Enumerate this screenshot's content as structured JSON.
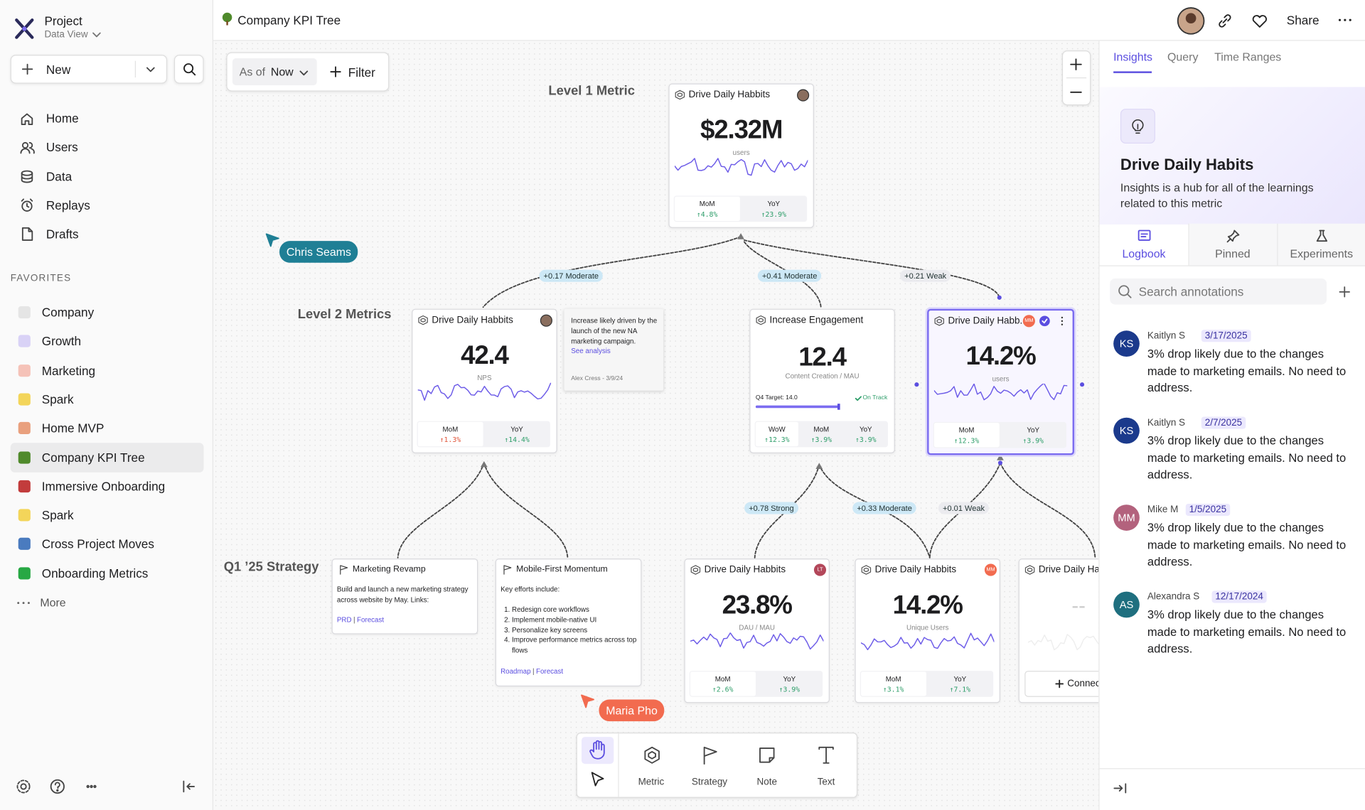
{
  "sidebar": {
    "project": "Project",
    "view": "Data View",
    "new": "New",
    "nav": [
      "Home",
      "Users",
      "Data",
      "Replays",
      "Drafts"
    ],
    "favorites_heading": "FAVORITES",
    "favorites": [
      "Company",
      "Growth",
      "Marketing",
      "Spark",
      "Home MVP",
      "Company KPI Tree",
      "Immersive Onboarding",
      "Spark",
      "Cross Project Moves",
      "Onboarding Metrics"
    ],
    "more": "More"
  },
  "header": {
    "title": "Company KPI Tree",
    "share": "Share"
  },
  "canvas": {
    "as_of": "As of",
    "now": "Now",
    "filter": "Filter",
    "levels": [
      "Level 1 Metric",
      "Level 2 Metrics",
      "Q1 ’25 Strategy"
    ],
    "cursors": [
      "Chris Seams",
      "Maria Pho"
    ],
    "edges": [
      "+0.17 Moderate",
      "+0.41 Moderate",
      "+0.21 Weak",
      "+0.78 Strong",
      "+0.33 Moderate",
      "+0.01 Weak"
    ],
    "metrics": [
      {
        "title": "Drive Daily Habbits",
        "value": "$2.32M",
        "unit": "users",
        "stats": [
          {
            "label": "MoM",
            "value": "↑4.8%"
          },
          {
            "label": "YoY",
            "value": "↑23.9%"
          }
        ]
      },
      {
        "title": "Drive Daily Habbits",
        "value": "42.4",
        "unit": "NPS",
        "stats": [
          {
            "label": "MoM",
            "value": "↑1.3%",
            "color": "#e0553a"
          },
          {
            "label": "YoY",
            "value": "↑14.4%"
          }
        ]
      },
      {
        "title": "Increase Engagement",
        "value": "12.4",
        "unit": "Content Creation / MAU",
        "target": "Q4 Target: 14.0",
        "status": "On Track",
        "stats": [
          {
            "label": "WoW",
            "value": "↑12.3%"
          },
          {
            "label": "MoM",
            "value": "↑3.9%"
          },
          {
            "label": "YoY",
            "value": "↑3.9%"
          }
        ]
      },
      {
        "title": "Drive Daily Habb..",
        "badge": "MM",
        "value": "14.2%",
        "unit": "users",
        "stats": [
          {
            "label": "MoM",
            "value": "↑12.3%"
          },
          {
            "label": "YoY",
            "value": "↑3.9%"
          }
        ]
      },
      {
        "title": "Drive Daily Habbits",
        "badge": "LT",
        "value": "23.8%",
        "unit": "DAU / MAU",
        "stats": [
          {
            "label": "MoM",
            "value": "↑2.6%"
          },
          {
            "label": "YoY",
            "value": "↑3.9%"
          }
        ]
      },
      {
        "title": "Drive Daily Habbits",
        "badge": "MM",
        "value": "14.2%",
        "unit": "Unique Users",
        "stats": [
          {
            "label": "MoM",
            "value": "↑3.1%"
          },
          {
            "label": "YoY",
            "value": "↑7.1%"
          }
        ]
      },
      {
        "title": "Drive Daily Habbits",
        "value": "--",
        "action": "Connect"
      }
    ],
    "note": {
      "text": "Increase likely driven by the launch of the new NA marketing campaign.",
      "link": "See analysis",
      "footer": "Alex Cress - 3/9/24"
    },
    "link_separator": "|",
    "strategies": [
      {
        "title": "Marketing Revamp",
        "body": "Build and launch a new marketing strategy across website by May. Links:",
        "links": [
          "PRD",
          "Forecast"
        ]
      },
      {
        "title": "Mobile-First Momentum",
        "body": "Key efforts include:",
        "items": [
          "Redesign core workflows",
          "Implement mobile-native UI",
          "Personalize key screens",
          "Improve performance metrics across top flows"
        ],
        "links": [
          "Roadmap",
          "Forecast"
        ]
      }
    ]
  },
  "toolbar": [
    "Metric",
    "Strategy",
    "Note",
    "Text"
  ],
  "panel": {
    "tabs": [
      "Insights",
      "Query",
      "Time Ranges"
    ],
    "title": "Drive Daily Habits",
    "description": "Insights is a hub for all of the learnings related to this metric",
    "subtabs": [
      "Logbook",
      "Pinned",
      "Experiments"
    ],
    "search": "Search annotations",
    "annotations": [
      {
        "initials": "KS",
        "author": "Kaitlyn S",
        "date": "3/17/2025",
        "text": "3% drop likely due to the changes made to marketing emails. No need to address.",
        "color": "#1b3a8c"
      },
      {
        "initials": "KS",
        "author": "Kaitlyn S",
        "date": "2/7/2025",
        "text": "3% drop likely due to the changes made to marketing emails. No need to address.",
        "color": "#1b3a8c"
      },
      {
        "initials": "MM",
        "author": "Mike M",
        "date": "1/5/2025",
        "text": "3% drop likely due to the changes made to marketing emails. No need to address.",
        "color": "#b3627d"
      },
      {
        "initials": "AS",
        "author": "Alexandra S",
        "date": "12/17/2024",
        "text": "3% drop likely due to the changes made to marketing emails. No need to address.",
        "color": "#1f6f7f"
      }
    ]
  }
}
